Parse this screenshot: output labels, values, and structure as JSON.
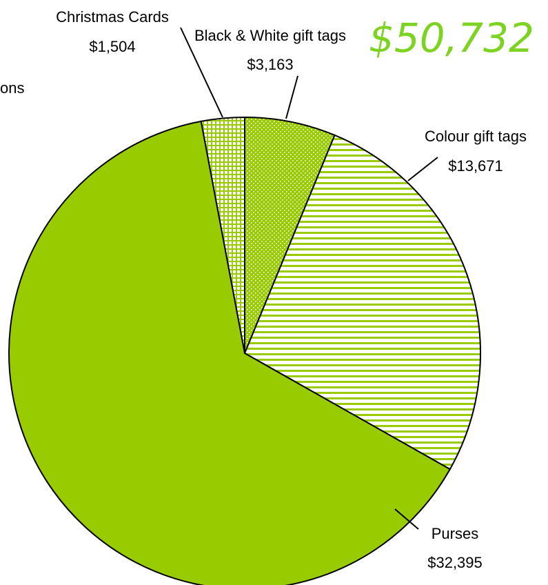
{
  "chart_data": {
    "type": "pie",
    "total_label": "$50,732",
    "slices": [
      {
        "name": "Christmas Cards",
        "value": 1504,
        "value_label": "$1,504",
        "pattern": "grid"
      },
      {
        "name": "Black & White gift tags",
        "value": 3163,
        "value_label": "$3,163",
        "pattern": "dots"
      },
      {
        "name": "Colour gift tags",
        "value": 13671,
        "value_label": "$13,671",
        "pattern": "hstripes"
      },
      {
        "name": "Purses",
        "value": 32395,
        "value_label": "$32,395",
        "pattern": "solid"
      }
    ],
    "partial_label_text": "ons",
    "colors": {
      "fill": "#99cc00",
      "stroke": "#000000",
      "total_text": "#7dd321"
    }
  }
}
